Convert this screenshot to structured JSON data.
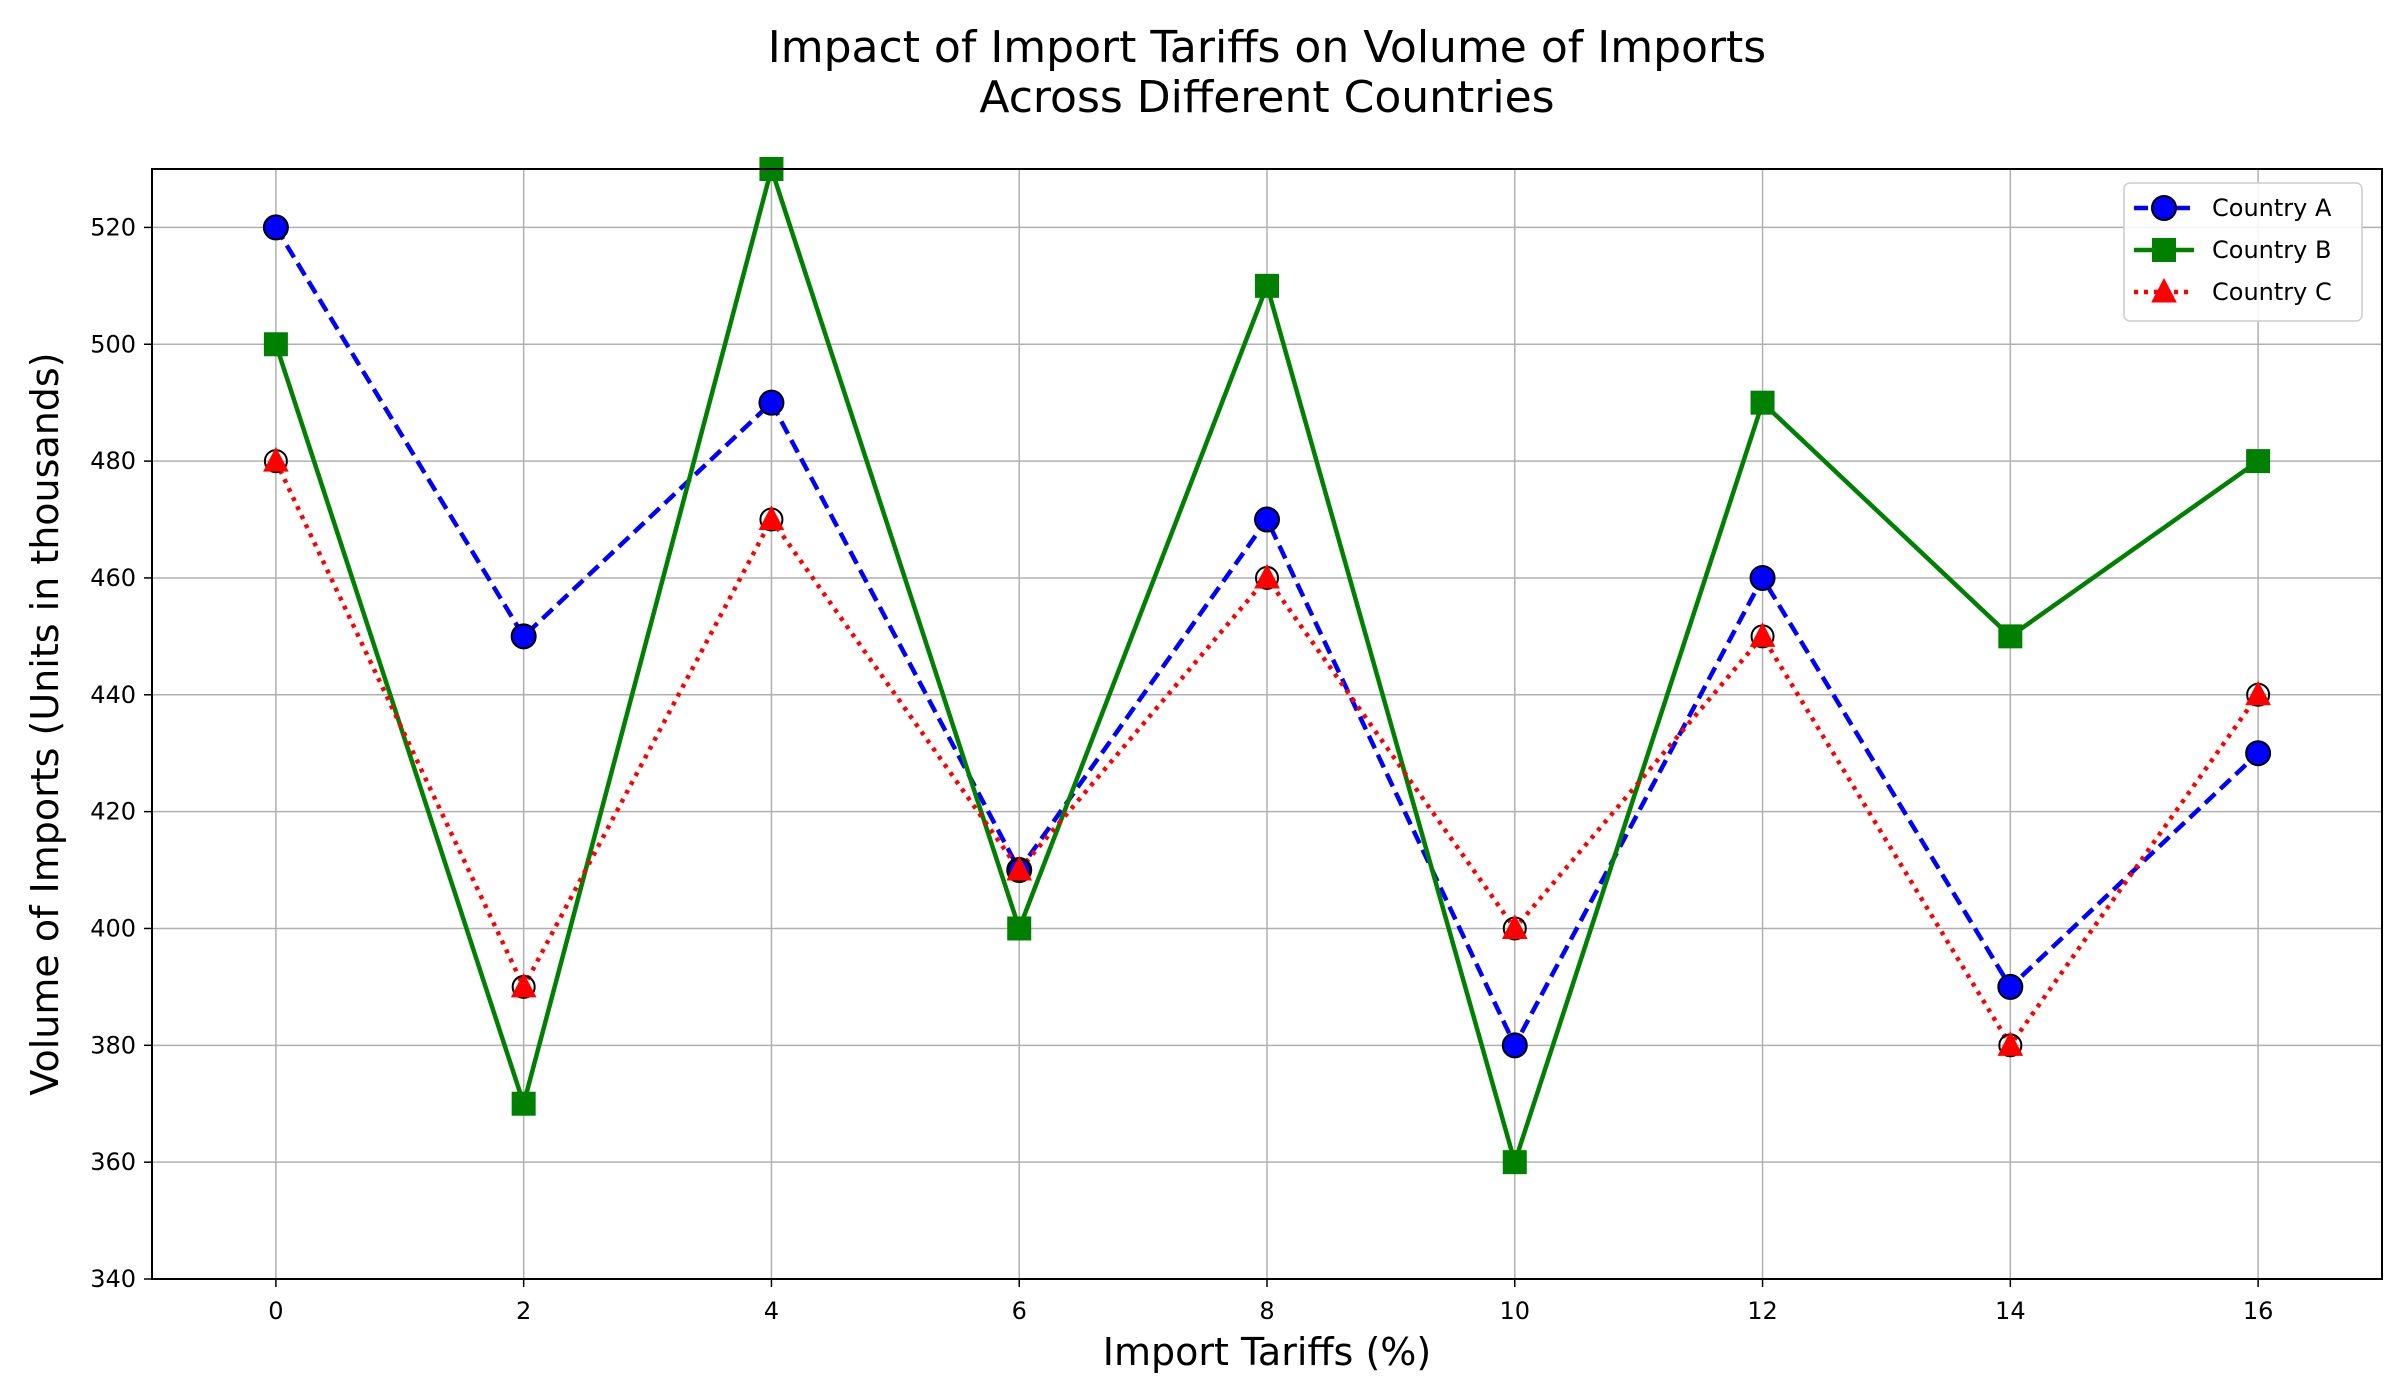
{
  "chart_data": {
    "type": "line",
    "title_line1": "Impact of Import Tariffs on Volume of Imports",
    "title_line2": "Across Different Countries",
    "xlabel": "Import Tariffs (%)",
    "ylabel": "Volume of Imports (Units in thousands)",
    "x": [
      0,
      2,
      4,
      6,
      8,
      10,
      12,
      14,
      16
    ],
    "xlim": [
      -1,
      17
    ],
    "ylim": [
      340,
      530
    ],
    "xticks": [
      0,
      2,
      4,
      6,
      8,
      10,
      12,
      14,
      16
    ],
    "yticks": [
      340,
      360,
      380,
      400,
      420,
      440,
      460,
      480,
      500,
      520
    ],
    "grid": true,
    "legend_position": "top-right",
    "series": [
      {
        "name": "Country A",
        "values": [
          520,
          450,
          490,
          410,
          470,
          380,
          460,
          390,
          430
        ],
        "color": "#0000ff",
        "line_style": "dashed",
        "marker": "circle"
      },
      {
        "name": "Country B",
        "values": [
          500,
          370,
          530,
          400,
          510,
          360,
          490,
          450,
          480
        ],
        "color": "#008000",
        "line_style": "solid",
        "marker": "square"
      },
      {
        "name": "Country C",
        "values": [
          480,
          390,
          470,
          410,
          460,
          400,
          450,
          380,
          440
        ],
        "color": "#ff0000",
        "line_style": "dotted",
        "marker": "triangle"
      }
    ]
  }
}
